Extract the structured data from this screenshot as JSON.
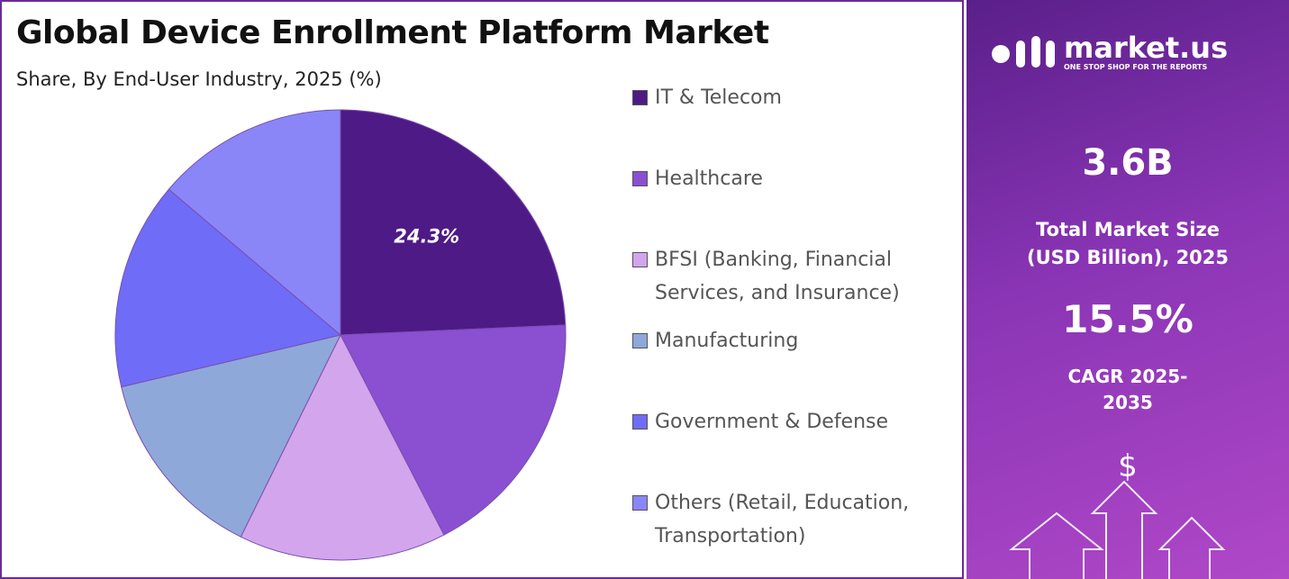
{
  "chart_data": {
    "type": "pie",
    "title": "Global Device Enrollment Platform Market",
    "subtitle": "Share, By End-User Industry, 2025 (%)",
    "categories": [
      "IT & Telecom",
      "Healthcare",
      "BFSI (Banking, Financial Services, and Insurance)",
      "Manufacturing",
      "Government & Defense",
      "Others (Retail, Education, Transportation)"
    ],
    "values": [
      24.3,
      18.1,
      14.9,
      14.0,
      14.9,
      13.8
    ],
    "value_labels": [
      "24.3%",
      null,
      null,
      null,
      null,
      null
    ],
    "colors": [
      "#4e1a86",
      "#8b4fd1",
      "#d3a5ec",
      "#8fa8da",
      "#6f6cf7",
      "#8a86f8"
    ]
  },
  "panel": {
    "brand": "market.us",
    "tagline": "ONE STOP SHOP FOR THE REPORTS",
    "market_size": "3.6B",
    "market_size_label": "Total Market Size (USD Billion), 2025",
    "cagr": "15.5%",
    "cagr_label": "CAGR 2025-2035",
    "currency_symbol": "$"
  }
}
